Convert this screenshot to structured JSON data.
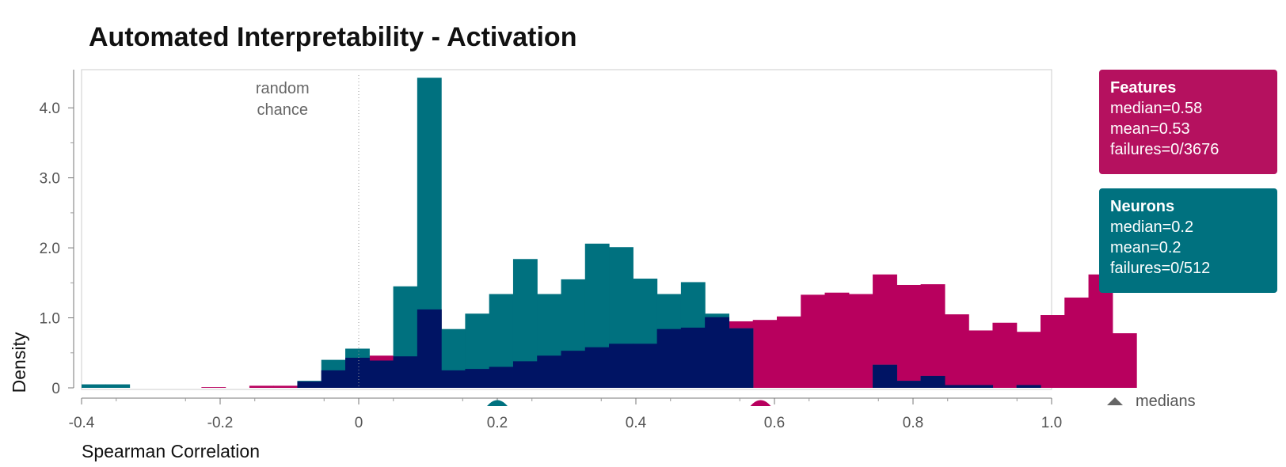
{
  "chart_data": {
    "type": "histogram",
    "title": "Automated Interpretability -  Activation",
    "xlabel": "Spearman Correlation",
    "ylabel": "Density",
    "xlim": [
      -0.4,
      1.0
    ],
    "ylim": [
      0,
      4.5
    ],
    "x_ticks": [
      {
        "value": -0.4,
        "label": "-0.4"
      },
      {
        "value": -0.2,
        "label": "-0.2"
      },
      {
        "value": 0,
        "label": "0"
      },
      {
        "value": 0.2,
        "label": "0.2"
      },
      {
        "value": 0.4,
        "label": "0.4"
      },
      {
        "value": 0.6,
        "label": "0.6"
      },
      {
        "value": 0.8,
        "label": "0.8"
      },
      {
        "value": 1.0,
        "label": "1.0"
      }
    ],
    "y_ticks": [
      {
        "value": 0,
        "label": "0"
      },
      {
        "value": 1,
        "label": "1.0"
      },
      {
        "value": 2,
        "label": "2.0"
      },
      {
        "value": 3,
        "label": "3.0"
      },
      {
        "value": 4,
        "label": "4.0"
      }
    ],
    "bin_start": -0.4,
    "bin_width": 0.0346,
    "series": [
      {
        "name": "Features",
        "color": "#b8005e",
        "values": [
          0,
          0,
          0,
          0,
          0,
          0.01,
          0,
          0.03,
          0.03,
          0.09,
          0.25,
          0.43,
          0.46,
          0.45,
          1.12,
          0.25,
          0.27,
          0.3,
          0.38,
          0.46,
          0.53,
          0.58,
          0.63,
          0.63,
          0.84,
          0.86,
          1.01,
          0.95,
          0.97,
          1.02,
          1.33,
          1.36,
          1.34,
          1.62,
          1.47,
          1.48,
          1.05,
          0.82,
          0.93,
          0.8,
          1.04,
          1.29,
          1.62,
          0.78
        ],
        "median": 0.58
      },
      {
        "name": "Neurons",
        "color": "#00717f",
        "values": [
          0.05,
          0.05,
          0,
          0,
          0,
          0,
          0,
          0,
          0,
          0.1,
          0.4,
          0.56,
          0.39,
          1.45,
          4.43,
          0.84,
          1.06,
          1.34,
          1.84,
          1.34,
          1.55,
          2.06,
          2.01,
          1.56,
          1.34,
          1.51,
          1.06,
          0.85,
          0,
          0,
          0,
          0,
          0,
          0.33,
          0.1,
          0.17,
          0.04,
          0.04,
          0,
          0.04,
          0,
          0,
          0,
          0
        ],
        "median": 0.2
      }
    ],
    "overlap_color": "#001464",
    "annotations": [
      {
        "text_lines": [
          "random",
          "chance"
        ],
        "x": 0
      }
    ],
    "legend_entries": [
      {
        "name": "Features",
        "lines": [
          "median=0.58",
          "mean=0.53",
          "failures=0/3676"
        ],
        "color": "#b5115f"
      },
      {
        "name": "Neurons",
        "lines": [
          "median=0.2",
          "mean=0.2",
          "failures=0/512"
        ],
        "color": "#00717f"
      }
    ],
    "median_legend": "medians",
    "legend_placement": "right"
  }
}
